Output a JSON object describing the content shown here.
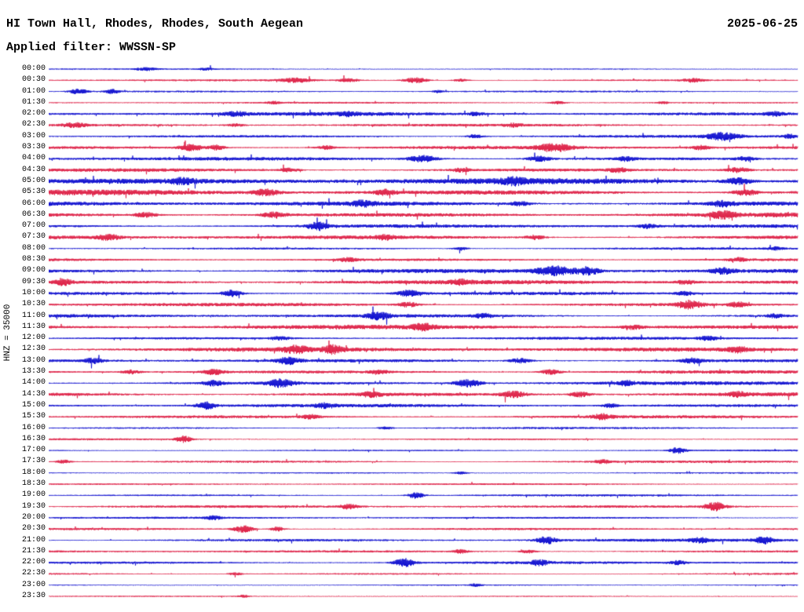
{
  "chart_data": {
    "type": "line",
    "subtype": "seismogram-helicorder",
    "title": "HI Town Hall, Rhodes, Rhodes, South Aegean",
    "date": "2025-06-25",
    "filter_label": "Applied filter: WWSSN-SP",
    "scale_label": "HNZ = 35000",
    "minutes_per_line": 30,
    "background": "#ffffff",
    "colors": {
      "blue": "#0000cd",
      "red": "#dc143c"
    },
    "rows": [
      {
        "label": "00:00",
        "color": "blue",
        "base_amp": 0.7,
        "bursts": [
          [
            0.13,
            1.8,
            18
          ],
          [
            0.21,
            1.6,
            12
          ]
        ]
      },
      {
        "label": "00:30",
        "color": "red",
        "base_amp": 1.1,
        "bursts": [
          [
            0.33,
            2.6,
            28
          ],
          [
            0.4,
            2.2,
            18
          ],
          [
            0.49,
            3.4,
            22
          ],
          [
            0.55,
            1.8,
            14
          ],
          [
            0.86,
            2.2,
            18
          ]
        ]
      },
      {
        "label": "01:00",
        "color": "blue",
        "base_amp": 0.9,
        "bursts": [
          [
            0.04,
            3.2,
            16
          ],
          [
            0.085,
            2.8,
            12
          ],
          [
            0.52,
            1.4,
            10
          ]
        ]
      },
      {
        "label": "01:30",
        "color": "red",
        "base_amp": 0.9,
        "bursts": [
          [
            0.3,
            1.4,
            12
          ],
          [
            0.68,
            1.8,
            14
          ],
          [
            0.82,
            1.4,
            10
          ]
        ]
      },
      {
        "label": "02:00",
        "color": "blue",
        "base_amp": 2.0,
        "bursts": [
          [
            0.25,
            2.2,
            20
          ],
          [
            0.4,
            1.8,
            16
          ],
          [
            0.57,
            1.6,
            14
          ],
          [
            0.97,
            2.0,
            16
          ]
        ]
      },
      {
        "label": "02:30",
        "color": "red",
        "base_amp": 1.4,
        "bursts": [
          [
            0.035,
            2.8,
            20
          ],
          [
            0.25,
            1.6,
            14
          ],
          [
            0.62,
            1.8,
            14
          ]
        ]
      },
      {
        "label": "03:00",
        "color": "blue",
        "base_amp": 1.7,
        "bursts": [
          [
            0.57,
            2.0,
            16
          ],
          [
            0.9,
            4.2,
            28
          ],
          [
            0.99,
            2.4,
            12
          ]
        ]
      },
      {
        "label": "03:30",
        "color": "red",
        "base_amp": 1.9,
        "bursts": [
          [
            0.19,
            4.0,
            22
          ],
          [
            0.225,
            3.2,
            14
          ],
          [
            0.37,
            2.4,
            16
          ],
          [
            0.675,
            4.6,
            30
          ],
          [
            0.87,
            2.4,
            16
          ]
        ]
      },
      {
        "label": "04:00",
        "color": "blue",
        "base_amp": 1.9,
        "bursts": [
          [
            0.5,
            4.2,
            26
          ],
          [
            0.655,
            3.2,
            20
          ],
          [
            0.77,
            2.4,
            16
          ],
          [
            0.93,
            2.4,
            16
          ]
        ]
      },
      {
        "label": "04:30",
        "color": "red",
        "base_amp": 2.1,
        "bursts": [
          [
            0.32,
            2.4,
            18
          ],
          [
            0.55,
            2.0,
            16
          ],
          [
            0.76,
            2.4,
            16
          ],
          [
            0.92,
            3.2,
            20
          ]
        ]
      },
      {
        "label": "05:00",
        "color": "blue",
        "base_amp": 3.2,
        "bursts": [
          [
            0.18,
            2.8,
            20
          ],
          [
            0.62,
            3.0,
            22
          ],
          [
            0.92,
            3.6,
            24
          ]
        ]
      },
      {
        "label": "05:30",
        "color": "red",
        "base_amp": 3.0,
        "bursts": [
          [
            0.29,
            3.6,
            24
          ],
          [
            0.45,
            2.8,
            18
          ],
          [
            0.93,
            3.6,
            22
          ]
        ]
      },
      {
        "label": "06:00",
        "color": "blue",
        "base_amp": 2.8,
        "bursts": [
          [
            0.42,
            2.8,
            20
          ],
          [
            0.63,
            2.6,
            18
          ],
          [
            0.9,
            3.0,
            20
          ]
        ]
      },
      {
        "label": "06:30",
        "color": "red",
        "base_amp": 2.6,
        "bursts": [
          [
            0.13,
            3.0,
            20
          ],
          [
            0.3,
            3.0,
            22
          ],
          [
            0.9,
            3.6,
            24
          ]
        ]
      },
      {
        "label": "07:00",
        "color": "blue",
        "base_amp": 2.0,
        "bursts": [
          [
            0.36,
            4.8,
            18
          ],
          [
            0.8,
            2.2,
            16
          ]
        ]
      },
      {
        "label": "07:30",
        "color": "red",
        "base_amp": 2.3,
        "bursts": [
          [
            0.08,
            3.0,
            20
          ],
          [
            0.45,
            2.2,
            16
          ],
          [
            0.65,
            2.6,
            18
          ]
        ]
      },
      {
        "label": "08:00",
        "color": "blue",
        "base_amp": 1.4,
        "bursts": [
          [
            0.55,
            1.8,
            14
          ],
          [
            0.97,
            1.6,
            12
          ]
        ]
      },
      {
        "label": "08:30",
        "color": "red",
        "base_amp": 1.7,
        "bursts": [
          [
            0.4,
            2.2,
            18
          ],
          [
            0.92,
            2.2,
            16
          ]
        ]
      },
      {
        "label": "09:00",
        "color": "blue",
        "base_amp": 2.3,
        "bursts": [
          [
            0.675,
            5.5,
            32
          ],
          [
            0.72,
            4.5,
            20
          ],
          [
            0.9,
            3.0,
            20
          ]
        ]
      },
      {
        "label": "09:30",
        "color": "red",
        "base_amp": 2.3,
        "bursts": [
          [
            0.02,
            3.0,
            16
          ],
          [
            0.55,
            2.2,
            16
          ],
          [
            0.85,
            2.2,
            16
          ]
        ]
      },
      {
        "label": "10:00",
        "color": "blue",
        "base_amp": 2.0,
        "bursts": [
          [
            0.245,
            4.0,
            18
          ],
          [
            0.48,
            3.8,
            20
          ],
          [
            0.85,
            2.2,
            16
          ]
        ]
      },
      {
        "label": "10:30",
        "color": "red",
        "base_amp": 2.0,
        "bursts": [
          [
            0.48,
            3.0,
            18
          ],
          [
            0.855,
            4.6,
            22
          ],
          [
            0.92,
            3.0,
            16
          ]
        ]
      },
      {
        "label": "11:00",
        "color": "blue",
        "base_amp": 1.9,
        "bursts": [
          [
            0.44,
            4.0,
            20
          ],
          [
            0.58,
            2.4,
            16
          ],
          [
            0.97,
            2.2,
            14
          ]
        ]
      },
      {
        "label": "11:30",
        "color": "red",
        "base_amp": 2.3,
        "bursts": [
          [
            0.5,
            3.2,
            20
          ],
          [
            0.78,
            2.4,
            16
          ]
        ]
      },
      {
        "label": "12:00",
        "color": "blue",
        "base_amp": 1.6,
        "bursts": [
          [
            0.31,
            2.2,
            16
          ],
          [
            0.88,
            2.2,
            16
          ]
        ]
      },
      {
        "label": "12:30",
        "color": "red",
        "base_amp": 2.3,
        "bursts": [
          [
            0.33,
            3.8,
            22
          ],
          [
            0.38,
            4.4,
            18
          ],
          [
            0.92,
            3.0,
            18
          ]
        ]
      },
      {
        "label": "13:00",
        "color": "blue",
        "base_amp": 2.0,
        "bursts": [
          [
            0.06,
            3.0,
            16
          ],
          [
            0.32,
            3.8,
            20
          ],
          [
            0.63,
            3.0,
            20
          ],
          [
            0.86,
            3.0,
            18
          ]
        ]
      },
      {
        "label": "13:30",
        "color": "red",
        "base_amp": 2.0,
        "bursts": [
          [
            0.11,
            2.4,
            16
          ],
          [
            0.22,
            3.0,
            18
          ],
          [
            0.44,
            2.4,
            16
          ],
          [
            0.67,
            3.0,
            18
          ]
        ]
      },
      {
        "label": "14:00",
        "color": "blue",
        "base_amp": 2.0,
        "bursts": [
          [
            0.22,
            3.0,
            18
          ],
          [
            0.31,
            4.6,
            22
          ],
          [
            0.56,
            4.6,
            24
          ],
          [
            0.77,
            2.4,
            16
          ]
        ]
      },
      {
        "label": "14:30",
        "color": "red",
        "base_amp": 2.3,
        "bursts": [
          [
            0.43,
            3.0,
            18
          ],
          [
            0.62,
            3.8,
            22
          ],
          [
            0.71,
            3.0,
            18
          ],
          [
            0.92,
            2.4,
            16
          ]
        ]
      },
      {
        "label": "15:00",
        "color": "blue",
        "base_amp": 1.7,
        "bursts": [
          [
            0.21,
            4.6,
            16
          ],
          [
            0.37,
            2.4,
            16
          ],
          [
            0.75,
            2.0,
            14
          ]
        ]
      },
      {
        "label": "15:30",
        "color": "red",
        "base_amp": 1.9,
        "bursts": [
          [
            0.35,
            2.4,
            16
          ],
          [
            0.74,
            3.0,
            18
          ]
        ]
      },
      {
        "label": "16:00",
        "color": "blue",
        "base_amp": 1.1,
        "bursts": [
          [
            0.45,
            1.6,
            12
          ]
        ]
      },
      {
        "label": "16:30",
        "color": "red",
        "base_amp": 1.1,
        "bursts": [
          [
            0.18,
            4.0,
            14
          ]
        ]
      },
      {
        "label": "17:00",
        "color": "blue",
        "base_amp": 0.9,
        "bursts": [
          [
            0.84,
            4.0,
            14
          ]
        ]
      },
      {
        "label": "17:30",
        "color": "red",
        "base_amp": 1.4,
        "bursts": [
          [
            0.02,
            2.2,
            12
          ],
          [
            0.74,
            2.0,
            14
          ]
        ]
      },
      {
        "label": "18:00",
        "color": "blue",
        "base_amp": 0.9,
        "bursts": [
          [
            0.55,
            1.6,
            12
          ]
        ]
      },
      {
        "label": "18:30",
        "color": "red",
        "base_amp": 0.9,
        "bursts": []
      },
      {
        "label": "19:00",
        "color": "blue",
        "base_amp": 1.1,
        "bursts": [
          [
            0.49,
            4.0,
            14
          ]
        ]
      },
      {
        "label": "19:30",
        "color": "red",
        "base_amp": 1.4,
        "bursts": [
          [
            0.4,
            2.8,
            16
          ],
          [
            0.89,
            5.2,
            18
          ]
        ]
      },
      {
        "label": "20:00",
        "color": "blue",
        "base_amp": 1.1,
        "bursts": [
          [
            0.22,
            2.2,
            14
          ]
        ]
      },
      {
        "label": "20:30",
        "color": "red",
        "base_amp": 1.4,
        "bursts": [
          [
            0.26,
            4.6,
            18
          ],
          [
            0.305,
            3.0,
            12
          ]
        ]
      },
      {
        "label": "21:00",
        "color": "blue",
        "base_amp": 1.6,
        "bursts": [
          [
            0.665,
            4.6,
            18
          ],
          [
            0.87,
            2.4,
            14
          ],
          [
            0.955,
            3.8,
            16
          ]
        ]
      },
      {
        "label": "21:30",
        "color": "red",
        "base_amp": 1.4,
        "bursts": [
          [
            0.55,
            2.2,
            14
          ],
          [
            0.64,
            2.2,
            14
          ]
        ]
      },
      {
        "label": "22:00",
        "color": "blue",
        "base_amp": 1.6,
        "bursts": [
          [
            0.475,
            5.2,
            18
          ],
          [
            0.655,
            3.0,
            16
          ],
          [
            0.84,
            2.4,
            14
          ]
        ]
      },
      {
        "label": "22:30",
        "color": "red",
        "base_amp": 1.1,
        "bursts": [
          [
            0.25,
            1.6,
            12
          ]
        ]
      },
      {
        "label": "23:00",
        "color": "blue",
        "base_amp": 0.7,
        "bursts": [
          [
            0.57,
            1.6,
            10
          ]
        ]
      },
      {
        "label": "23:30",
        "color": "red",
        "base_amp": 0.6,
        "bursts": [
          [
            0.26,
            1.6,
            10
          ]
        ]
      }
    ]
  }
}
